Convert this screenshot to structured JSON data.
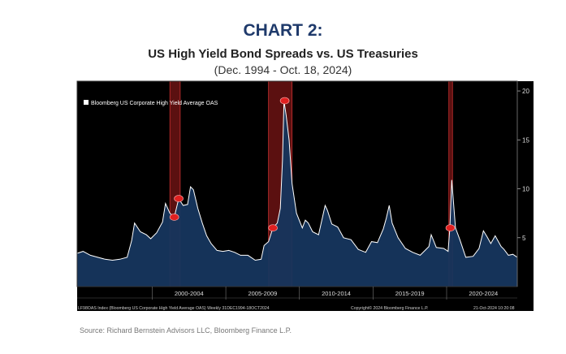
{
  "header": {
    "chart_number": "CHART 2:",
    "title": "US High Yield Bond Spreads vs. US Treasuries",
    "subtitle": "(Dec. 1994 - Oct. 18, 2024)"
  },
  "footer": {
    "source": "Source: Richard Bernstein Advisors LLC, Bloomberg Finance L.P."
  },
  "chart_data": {
    "type": "area",
    "legend": "Bloomberg US Corporate High Yield Average OAS",
    "legend_position": "top-left",
    "series": [
      {
        "name": "Bloomberg US Corporate High Yield Average OAS",
        "color": "#ffffff",
        "fill": "#16365e",
        "x": [
          1994.9,
          1995.3,
          1995.8,
          1996.3,
          1996.8,
          1997.3,
          1997.8,
          1998.3,
          1998.6,
          1998.8,
          1999.2,
          1999.6,
          1999.9,
          2000.3,
          2000.7,
          2000.9,
          2001.2,
          2001.5,
          2001.8,
          2002.1,
          2002.4,
          2002.6,
          2002.8,
          2003.1,
          2003.4,
          2003.7,
          2004.0,
          2004.4,
          2004.8,
          2005.2,
          2005.6,
          2006.0,
          2006.5,
          2007.0,
          2007.4,
          2007.6,
          2007.9,
          2008.2,
          2008.5,
          2008.7,
          2008.85,
          2008.95,
          2009.1,
          2009.3,
          2009.5,
          2009.8,
          2010.2,
          2010.4,
          2010.6,
          2010.9,
          2011.3,
          2011.75,
          2011.9,
          2012.2,
          2012.6,
          2013.0,
          2013.5,
          2014.0,
          2014.5,
          2014.9,
          2015.3,
          2015.7,
          2015.9,
          2016.1,
          2016.3,
          2016.7,
          2017.2,
          2017.7,
          2018.2,
          2018.8,
          2018.95,
          2019.3,
          2019.8,
          2020.1,
          2020.22,
          2020.35,
          2020.6,
          2020.9,
          2021.3,
          2021.8,
          2022.2,
          2022.5,
          2022.75,
          2023.0,
          2023.3,
          2023.7,
          2023.9,
          2024.2,
          2024.5,
          2024.8
        ],
        "values": [
          3.4,
          3.6,
          3.2,
          3.0,
          2.8,
          2.7,
          2.8,
          3.0,
          4.7,
          6.5,
          5.6,
          5.3,
          4.9,
          5.5,
          6.6,
          8.5,
          7.5,
          7.1,
          9.0,
          8.3,
          8.4,
          10.2,
          9.9,
          8.0,
          6.5,
          5.2,
          4.4,
          3.7,
          3.6,
          3.7,
          3.5,
          3.2,
          3.2,
          2.7,
          2.8,
          4.2,
          4.6,
          6.0,
          6.5,
          8.0,
          13.0,
          19.0,
          17.5,
          15.0,
          10.5,
          7.5,
          6.0,
          6.8,
          6.5,
          5.6,
          5.3,
          8.3,
          7.8,
          6.4,
          6.1,
          5.0,
          4.8,
          3.8,
          3.5,
          4.6,
          4.5,
          5.9,
          7.0,
          8.3,
          6.5,
          5.0,
          3.9,
          3.5,
          3.2,
          4.1,
          5.3,
          4.0,
          3.9,
          3.6,
          6.0,
          10.9,
          6.0,
          4.8,
          3.0,
          3.1,
          3.9,
          5.7,
          5.1,
          4.4,
          5.2,
          4.1,
          3.8,
          3.2,
          3.3,
          3.0
        ]
      }
    ],
    "recessions": [
      [
        2001.2,
        2001.9
      ],
      [
        2007.9,
        2009.5
      ],
      [
        2020.15,
        2020.4
      ]
    ],
    "recession_markers": [
      2001.5,
      2001.8,
      2008.2,
      2009.0,
      2020.25
    ],
    "x_range": [
      1994.9,
      2024.8
    ],
    "ylim": [
      0,
      21
    ],
    "yticks": [
      5,
      10,
      15,
      20
    ],
    "x_tick_labels": [
      {
        "label": "2000-2004",
        "at": 2002.5,
        "divider": 2000.0
      },
      {
        "label": "2005-2009",
        "at": 2007.5,
        "divider": 2005.0
      },
      {
        "label": "2010-2014",
        "at": 2012.5,
        "divider": 2010.0
      },
      {
        "label": "2015-2019",
        "at": 2017.5,
        "divider": 2015.0
      },
      {
        "label": "2020-2024",
        "at": 2022.5,
        "divider": 2020.0
      }
    ],
    "grid": false,
    "footer_left": "LF98OAS Index (Bloomberg US Corporate High Yield Average OAS) Weekly 31DEC1994-18OCT2024",
    "footer_mid": "Copyright© 2024 Bloomberg Finance L.P.",
    "footer_right": "21-Oct-2024 10:20:08"
  }
}
